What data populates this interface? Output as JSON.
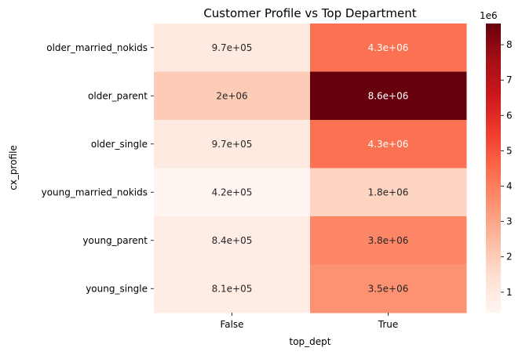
{
  "chart_data": {
    "type": "heatmap",
    "title": "Customer Profile vs Top Department",
    "xlabel": "top_dept",
    "ylabel": "cx_profile",
    "x_categories": [
      "False",
      "True"
    ],
    "y_categories": [
      "older_married_nokids",
      "older_parent",
      "older_single",
      "young_married_nokids",
      "young_parent",
      "young_single"
    ],
    "values": [
      [
        970000,
        4300000
      ],
      [
        2000000,
        8600000
      ],
      [
        970000,
        4300000
      ],
      [
        420000,
        1800000
      ],
      [
        840000,
        3800000
      ],
      [
        810000,
        3500000
      ]
    ],
    "annotations": [
      [
        "9.7e+05",
        "4.3e+06"
      ],
      [
        "2e+06",
        "8.6e+06"
      ],
      [
        "9.7e+05",
        "4.3e+06"
      ],
      [
        "4.2e+05",
        "1.8e+06"
      ],
      [
        "8.4e+05",
        "3.8e+06"
      ],
      [
        "8.1e+05",
        "3.5e+06"
      ]
    ],
    "colormap": "Reds",
    "colorbar": {
      "range": [
        420000,
        8600000
      ],
      "ticks": [
        1,
        2,
        3,
        4,
        5,
        6,
        7,
        8
      ],
      "tick_labels": [
        "1",
        "2",
        "3",
        "4",
        "5",
        "6",
        "7",
        "8"
      ],
      "multiplier_label": "1e6",
      "tick_scale": 1000000
    }
  }
}
